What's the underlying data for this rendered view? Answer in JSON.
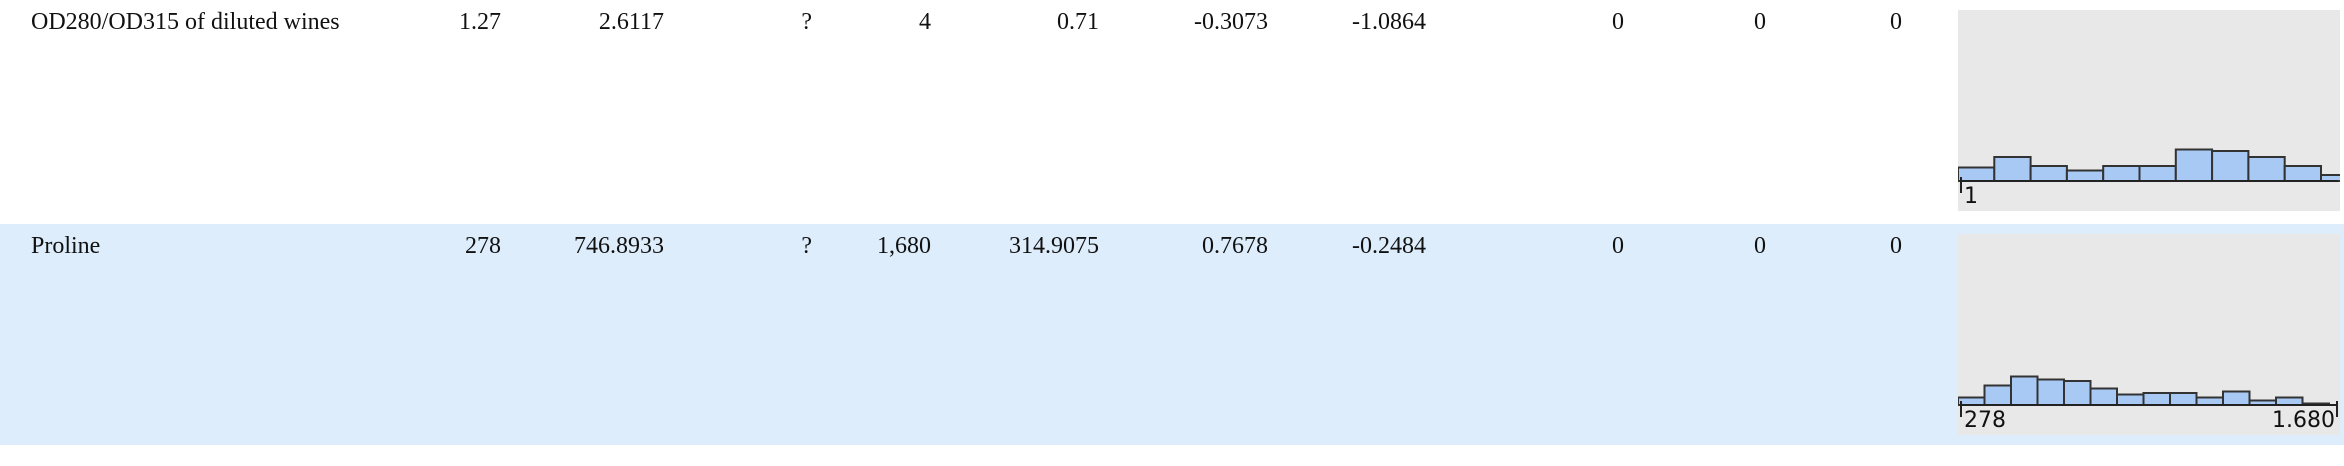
{
  "rows": [
    {
      "name": "OD280/OD315 of diluted wines",
      "cells": [
        "1.27",
        "2.6117",
        "?",
        "4",
        "0.71",
        "-0.3073",
        "-1.0864",
        "0",
        "0",
        "0"
      ],
      "histogram": {
        "counts": [
          9,
          16,
          10,
          7,
          10,
          10,
          21,
          20,
          16,
          10,
          4
        ],
        "axis_labels": [
          "1"
        ]
      }
    },
    {
      "name": "Proline",
      "cells": [
        "278",
        "746.8933",
        "?",
        "1,680",
        "314.9075",
        "0.7678",
        "-0.2484",
        "0",
        "0",
        "0"
      ],
      "histogram": {
        "counts": [
          5,
          13,
          19,
          17,
          16,
          11,
          7,
          8,
          8,
          5,
          9,
          3,
          5,
          1
        ],
        "axis_labels": [
          "278",
          "1.680"
        ]
      }
    }
  ]
}
